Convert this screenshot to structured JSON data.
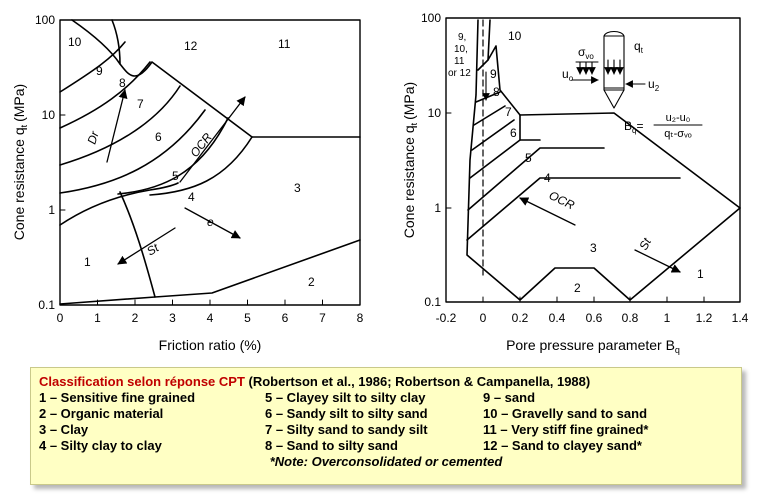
{
  "left_chart": {
    "ylabel": "Cone resistance q",
    "ylabel_sub": "t",
    "ylabel_unit": "(MPa)",
    "xlabel": "Friction ratio (%)",
    "x_ticks": [
      "0",
      "1",
      "2",
      "3",
      "4",
      "5",
      "6",
      "7",
      "8"
    ],
    "y_ticks": [
      "100",
      "10",
      "1",
      "0.1"
    ],
    "zones": [
      "1",
      "2",
      "3",
      "4",
      "5",
      "6",
      "7",
      "8",
      "9",
      "10",
      "11",
      "12"
    ],
    "arrow_labels": {
      "ocr": "OCR",
      "dr": "Dr",
      "st": "St",
      "e": "e"
    }
  },
  "right_chart": {
    "ylabel": "Cone resistance q",
    "ylabel_sub": "t",
    "ylabel_unit": "(MPa)",
    "xlabel": "Pore pressure parameter B",
    "xlabel_sub": "q",
    "x_ticks": [
      "-0.2",
      "0",
      "0.2",
      "0.4",
      "0.6",
      "0.8",
      "1",
      "1.2",
      "1.4"
    ],
    "y_ticks": [
      "100",
      "10",
      "1",
      "0.1"
    ],
    "zones": [
      "1",
      "2",
      "3",
      "4",
      "5",
      "6",
      "7",
      "8",
      "9",
      "10"
    ],
    "group_label": [
      "9,",
      "10,",
      "11",
      "or 12"
    ],
    "arrow_labels": {
      "ocr": "OCR",
      "st": "St"
    },
    "inset": {
      "sigma": "σ",
      "sigma_sub": "vo",
      "qt": "q",
      "qt_sub": "t",
      "uo": "u",
      "uo_sub": "o",
      "u2": "u",
      "u2_sub": "2"
    },
    "formula": {
      "lhs": "B",
      "lhs_sub": "q",
      "num": "u₂-u₀",
      "den": "qₜ-σᵥₒ"
    }
  },
  "legend": {
    "title_red": "Classification selon réponse CPT",
    "title_rest": " (Robertson et al., 1986;  Robertson & Campanella, 1988)",
    "items": [
      "1 – Sensitive fine grained",
      "5 – Clayey silt to silty clay",
      "9 – sand",
      "2 – Organic material",
      "6 – Sandy silt to silty sand",
      "10 – Gravelly sand to sand",
      "3 – Clay",
      "7 – Silty sand to sandy silt",
      "11 – Very stiff fine grained*",
      "4 – Silty clay to clay",
      "8 – Sand to silty sand",
      "12 – Sand to clayey sand*"
    ],
    "note": "*Note:  Overconsolidated or cemented"
  }
}
